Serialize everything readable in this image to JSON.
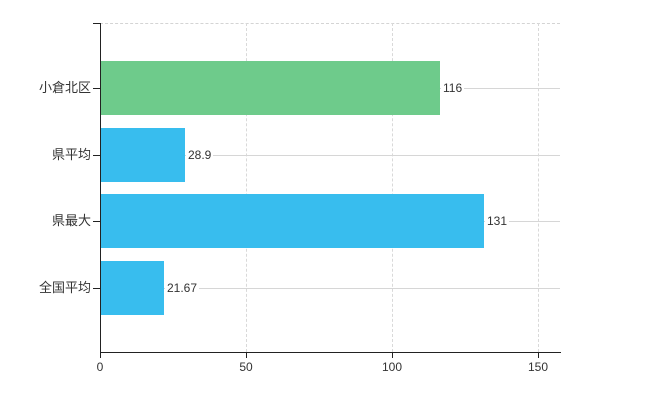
{
  "chart_data": {
    "type": "bar",
    "orientation": "horizontal",
    "title": "",
    "categories": [
      "小倉北区",
      "県平均",
      "県最大",
      "全国平均"
    ],
    "values": [
      116,
      28.9,
      131,
      21.67
    ],
    "value_labels": [
      "116",
      "28.9",
      "131",
      "21.67"
    ],
    "bar_colors": [
      "#6ecb8b",
      "#38bdee",
      "#38bdee",
      "#38bdee"
    ],
    "x_tick_labels": [
      "0",
      "50",
      "100",
      "150"
    ],
    "x_tick_values": [
      0,
      50,
      100,
      150
    ],
    "xlim": [
      0,
      157.5
    ],
    "grid": true,
    "legend_position": "none",
    "colors": {
      "highlight_bar": "#6ecb8b",
      "default_bar": "#38bdee",
      "gridline": "#d6d6d6",
      "axis": "#222222",
      "text": "#333333",
      "background": "#ffffff"
    }
  }
}
